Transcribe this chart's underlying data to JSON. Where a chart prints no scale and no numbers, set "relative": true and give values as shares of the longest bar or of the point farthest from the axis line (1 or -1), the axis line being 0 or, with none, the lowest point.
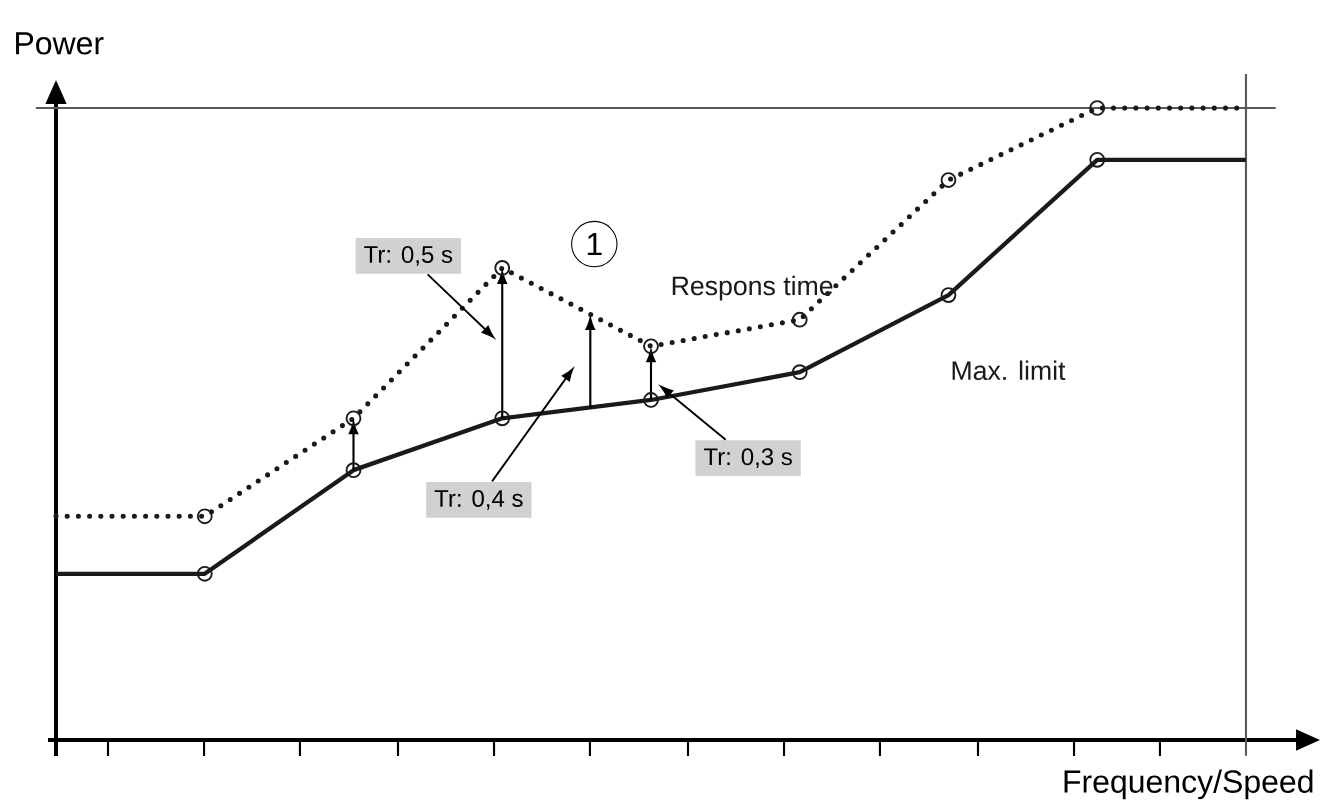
{
  "chart_data": {
    "type": "line",
    "relative": true,
    "xlabel": "Frequency/Speed",
    "ylabel": "Power",
    "categories": [
      null,
      null,
      null,
      null,
      null,
      null,
      null,
      null,
      null
    ],
    "marker": "circle",
    "series": [
      {
        "name": "Max. limit",
        "color": "#1a1a1a",
        "line_style": "solid",
        "values": [
          0.263,
          0.263,
          0.427,
          0.509,
          0.538,
          0.582,
          0.704,
          0.918,
          0.918
        ]
      },
      {
        "name": "Respons time",
        "color": "#1a1a1a",
        "line_style": "dotted",
        "values": [
          0.354,
          0.354,
          0.509,
          0.747,
          0.623,
          0.665,
          0.886,
          1,
          1
        ]
      }
    ],
    "annotations": [
      "Tr: 0,5 s",
      "Tr: 0,4 s",
      "Tr: 0,3 s",
      "1"
    ]
  }
}
